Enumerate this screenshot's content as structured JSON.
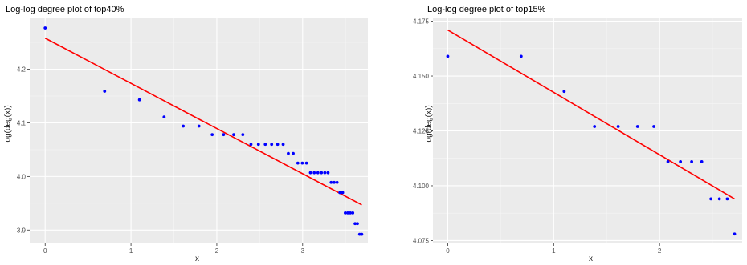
{
  "chart_data": [
    {
      "type": "scatter",
      "title": "Log-log degree plot of top40%",
      "xlabel": "x",
      "ylabel": "log(deg(x))",
      "xlim": [
        -0.18,
        3.76
      ],
      "ylim": [
        3.875,
        4.295
      ],
      "xticks": [
        0,
        1,
        2,
        3
      ],
      "yticks": [
        3.9,
        4.0,
        4.1,
        4.2
      ],
      "ytick_labels": [
        "3.9",
        "4.0",
        "4.1",
        "4.2"
      ],
      "grid": true,
      "point_color": "#0000ff",
      "line_color": "#ff0000",
      "points": [
        [
          0.0,
          4.277
        ],
        [
          0.693,
          4.159
        ],
        [
          1.099,
          4.143
        ],
        [
          1.386,
          4.111
        ],
        [
          1.609,
          4.094
        ],
        [
          1.792,
          4.094
        ],
        [
          1.946,
          4.078
        ],
        [
          2.079,
          4.078
        ],
        [
          2.197,
          4.078
        ],
        [
          2.303,
          4.078
        ],
        [
          2.398,
          4.06
        ],
        [
          2.485,
          4.06
        ],
        [
          2.565,
          4.06
        ],
        [
          2.639,
          4.06
        ],
        [
          2.708,
          4.06
        ],
        [
          2.773,
          4.06
        ],
        [
          2.833,
          4.043
        ],
        [
          2.89,
          4.043
        ],
        [
          2.944,
          4.025
        ],
        [
          2.996,
          4.025
        ],
        [
          3.045,
          4.025
        ],
        [
          3.091,
          4.007
        ],
        [
          3.135,
          4.007
        ],
        [
          3.178,
          4.007
        ],
        [
          3.219,
          4.007
        ],
        [
          3.258,
          4.007
        ],
        [
          3.296,
          4.007
        ],
        [
          3.332,
          3.989
        ],
        [
          3.367,
          3.989
        ],
        [
          3.401,
          3.989
        ],
        [
          3.434,
          3.97
        ],
        [
          3.466,
          3.97
        ],
        [
          3.497,
          3.932
        ],
        [
          3.526,
          3.932
        ],
        [
          3.555,
          3.932
        ],
        [
          3.584,
          3.932
        ],
        [
          3.611,
          3.912
        ],
        [
          3.638,
          3.912
        ],
        [
          3.664,
          3.892
        ],
        [
          3.689,
          3.892
        ]
      ],
      "fit_line": {
        "x": [
          0.0,
          3.689
        ],
        "y": [
          4.258,
          3.947
        ]
      }
    },
    {
      "type": "scatter",
      "title": "Log-log degree plot of top15%",
      "xlabel": "x",
      "ylabel": "log(deg(x))",
      "xlim": [
        -0.14,
        2.78
      ],
      "ylim": [
        4.0737,
        4.1763
      ],
      "xticks": [
        0,
        1,
        2
      ],
      "yticks": [
        4.075,
        4.1,
        4.125,
        4.15,
        4.175
      ],
      "ytick_labels": [
        "4.075",
        "4.100",
        "4.125",
        "4.150",
        "4.175"
      ],
      "grid": true,
      "point_color": "#0000ff",
      "line_color": "#ff0000",
      "points": [
        [
          0.0,
          4.159
        ],
        [
          0.693,
          4.159
        ],
        [
          1.099,
          4.143
        ],
        [
          1.386,
          4.127
        ],
        [
          1.609,
          4.127
        ],
        [
          1.792,
          4.127
        ],
        [
          1.946,
          4.127
        ],
        [
          2.079,
          4.111
        ],
        [
          2.197,
          4.111
        ],
        [
          2.303,
          4.111
        ],
        [
          2.398,
          4.111
        ],
        [
          2.485,
          4.094
        ],
        [
          2.565,
          4.094
        ],
        [
          2.639,
          4.094
        ],
        [
          2.708,
          4.078
        ]
      ],
      "fit_line": {
        "x": [
          0.0,
          2.708
        ],
        "y": [
          4.171,
          4.094
        ]
      }
    }
  ]
}
